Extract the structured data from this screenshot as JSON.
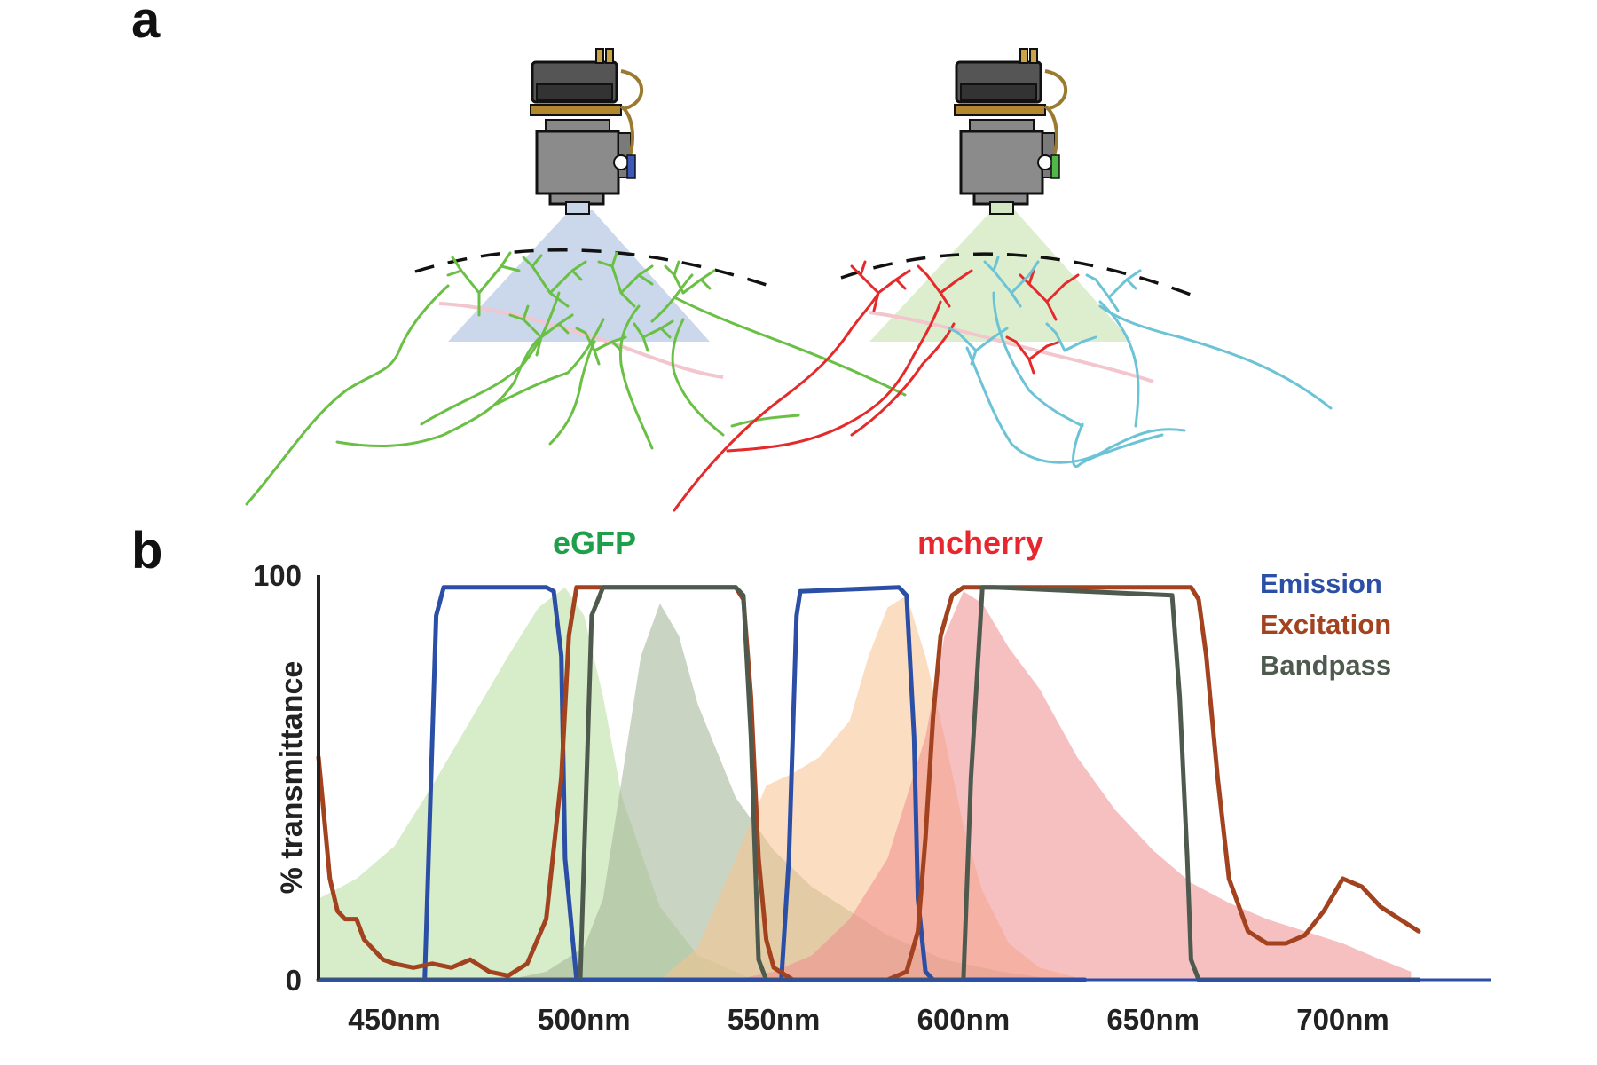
{
  "panels": {
    "a_label": "a",
    "b_label": "b"
  },
  "illustration": {
    "left": {
      "light_color": "#c2d0e8",
      "filter_color": "#3b58b8",
      "neuron_colors": [
        "#6abf45"
      ]
    },
    "right": {
      "light_color": "#d9ecc9",
      "filter_color": "#4fb848",
      "neuron_colors": [
        "#e42a2a",
        "#6cc3d6"
      ]
    }
  },
  "fluorophores": [
    {
      "name": "eGFP",
      "color": "#1ea04a"
    },
    {
      "name": "mcherry",
      "color": "#e8262e"
    }
  ],
  "chart_data": {
    "type": "line",
    "xlabel": "",
    "ylabel": "% transmittance",
    "xlim": [
      430,
      720
    ],
    "ylim": [
      0,
      100
    ],
    "x_ticks": [
      450,
      500,
      550,
      600,
      650,
      700
    ],
    "x_tick_labels": [
      "450nm",
      "500nm",
      "550nm",
      "600nm",
      "650nm",
      "700nm"
    ],
    "y_ticks": [
      0,
      100
    ],
    "y_tick_labels": [
      "0",
      "100"
    ],
    "legend": {
      "placement": "top-right",
      "entries": [
        {
          "name": "Emission",
          "color": "#2b4ea6"
        },
        {
          "name": "Excitation",
          "color": "#a2421e"
        },
        {
          "name": "Bandpass",
          "color": "#4f5a4f"
        }
      ]
    },
    "areas": [
      {
        "color": "#b7dd9c",
        "opacity": 0.55,
        "x": [
          430,
          440,
          450,
          460,
          470,
          480,
          488,
          495,
          500,
          505,
          510,
          520,
          530,
          545
        ],
        "y": [
          20,
          25,
          33,
          48,
          64,
          80,
          92,
          97,
          90,
          70,
          45,
          18,
          6,
          0
        ]
      },
      {
        "color": "#a5b79a",
        "opacity": 0.6,
        "x": [
          480,
          490,
          500,
          505,
          510,
          515,
          520,
          525,
          530,
          540,
          550,
          560,
          570,
          580,
          595,
          610,
          625
        ],
        "y": [
          0,
          2,
          8,
          20,
          50,
          80,
          93,
          85,
          68,
          45,
          32,
          23,
          17,
          11,
          5,
          2,
          0
        ]
      },
      {
        "color": "#f8c38f",
        "opacity": 0.55,
        "x": [
          520,
          530,
          540,
          548,
          555,
          562,
          570,
          575,
          580,
          585,
          590,
          595,
          600,
          605,
          612,
          620,
          632
        ],
        "y": [
          0,
          8,
          30,
          48,
          51,
          55,
          64,
          80,
          92,
          95,
          80,
          60,
          38,
          22,
          9,
          3,
          0
        ]
      },
      {
        "color": "#ee8c8c",
        "opacity": 0.55,
        "x": [
          540,
          550,
          560,
          570,
          580,
          590,
          595,
          600,
          605,
          612,
          620,
          630,
          640,
          650,
          660,
          670,
          680,
          690,
          700,
          710,
          718
        ],
        "y": [
          0,
          2,
          6,
          15,
          30,
          60,
          85,
          96,
          93,
          82,
          72,
          55,
          42,
          32,
          24,
          19,
          15,
          12,
          9,
          5,
          2
        ]
      }
    ],
    "series": [
      {
        "name": "Emission",
        "color": "#2b4ea6",
        "segments": [
          {
            "x": [
              430,
              458,
              459,
              461,
              463,
              490,
              492,
              494,
              495,
              498,
              500,
              552,
              554,
              556,
              557
            ],
            "y": [
              0,
              0,
              30,
              90,
              97,
              97,
              96,
              80,
              30,
              0,
              0,
              0,
              30,
              90,
              96
            ]
          },
          {
            "x": [
              557,
              583,
              585,
              587,
              588,
              590,
              592,
              632
            ],
            "y": [
              96,
              97,
              95,
              60,
              20,
              2,
              0,
              0
            ]
          }
        ]
      },
      {
        "name": "Excitation",
        "color": "#a2421e",
        "segments": [
          {
            "x": [
              430,
              431,
              433,
              435,
              437,
              440,
              442,
              445,
              447,
              450,
              455,
              460,
              465,
              470,
              475,
              480,
              485,
              490,
              494,
              496,
              498,
              500,
              540,
              542,
              544,
              546,
              548,
              550,
              555,
              560,
              570,
              580,
              585,
              588,
              590,
              592,
              594,
              597,
              600,
              660,
              662,
              664,
              667,
              670,
              675,
              680,
              685,
              690,
              695,
              700,
              705,
              710,
              715,
              720
            ],
            "y": [
              55,
              45,
              25,
              17,
              15,
              15,
              10,
              7,
              5,
              4,
              3,
              4,
              3,
              5,
              2,
              1,
              4,
              15,
              50,
              85,
              97,
              97,
              97,
              94,
              70,
              30,
              10,
              3,
              0,
              0,
              0,
              0,
              2,
              12,
              35,
              65,
              85,
              95,
              97,
              97,
              94,
              80,
              50,
              25,
              12,
              9,
              9,
              11,
              17,
              25,
              23,
              18,
              15,
              12
            ]
          }
        ]
      },
      {
        "name": "Bandpass",
        "color": "#4f5a4f",
        "segments": [
          {
            "x": [
              430,
              499,
              500,
              502,
              505,
              540,
              542,
              544,
              546,
              548,
              600,
              602,
              605,
              608,
              655,
              657,
              659,
              660,
              662,
              720
            ],
            "y": [
              0,
              0,
              30,
              90,
              97,
              97,
              95,
              60,
              5,
              0,
              0,
              50,
              97,
              97,
              95,
              70,
              30,
              5,
              0,
              0
            ]
          }
        ]
      }
    ]
  }
}
